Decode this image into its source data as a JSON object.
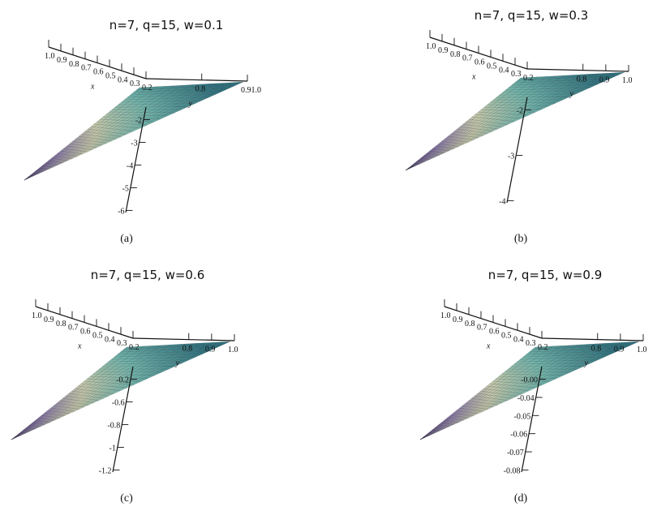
{
  "chart_data": [
    {
      "type": "surface",
      "title": "n=7, q=15, w=0.1",
      "caption": "(a)",
      "xlabel": "x",
      "ylabel": "y",
      "x_ticks": [
        "1.0",
        "0.9",
        "0.8",
        "0.7",
        "0.6",
        "0.5",
        "0.4",
        "0.3",
        "0.2"
      ],
      "y_ticks": [
        "0.8",
        "0.91.0"
      ],
      "z_ticks": [
        "-2",
        "-3",
        "-4",
        "-5",
        "-6"
      ],
      "colors": [
        "#4b2e6e",
        "#8d7fa6",
        "#c6c9a8",
        "#6fb3a8",
        "#2d6f7a"
      ]
    },
    {
      "type": "surface",
      "title": "n=7, q=15, w=0.3",
      "caption": "(b)",
      "xlabel": "x",
      "ylabel": "y",
      "x_ticks": [
        "1.0",
        "0.9",
        "0.8",
        "0.7",
        "0.6",
        "0.5",
        "0.4",
        "0.3",
        "0.2"
      ],
      "y_ticks": [
        "0.8",
        "0.9",
        "1.0"
      ],
      "z_ticks": [
        "-2",
        "-3",
        "-4"
      ],
      "colors": [
        "#4b2e6e",
        "#8d7fa6",
        "#c6c9a8",
        "#6fb3a8",
        "#2d6f7a"
      ]
    },
    {
      "type": "surface",
      "title": "n=7, q=15, w=0.6",
      "caption": "(c)",
      "xlabel": "x",
      "ylabel": "y",
      "x_ticks": [
        "1.0",
        "0.9",
        "0.8",
        "0.7",
        "0.6",
        "0.5",
        "0.4",
        "0.3",
        "0.2"
      ],
      "y_ticks": [
        "0.8",
        "0.9",
        "1.0"
      ],
      "z_ticks": [
        "-0.2",
        "-0.6",
        "-0.8",
        "-1",
        "-1.2"
      ],
      "colors": [
        "#4b2e6e",
        "#8d7fa6",
        "#c6c9a8",
        "#6fb3a8",
        "#2d6f7a"
      ]
    },
    {
      "type": "surface",
      "title": "n=7, q=15, w=0.9",
      "caption": "(d)",
      "xlabel": "x",
      "ylabel": "y",
      "x_ticks": [
        "1.0",
        "0.9",
        "0.8",
        "0.7",
        "0.6",
        "0.5",
        "0.4",
        "0.3",
        "0.2"
      ],
      "y_ticks": [
        "0.8",
        "0.9",
        "1.0"
      ],
      "z_ticks": [
        "-0.00",
        "-0.04",
        "-0.05",
        "-0.06",
        "-0.07",
        "-0.08"
      ],
      "colors": [
        "#4b2e6e",
        "#8d7fa6",
        "#c6c9a8",
        "#6fb3a8",
        "#2d6f7a"
      ]
    }
  ]
}
